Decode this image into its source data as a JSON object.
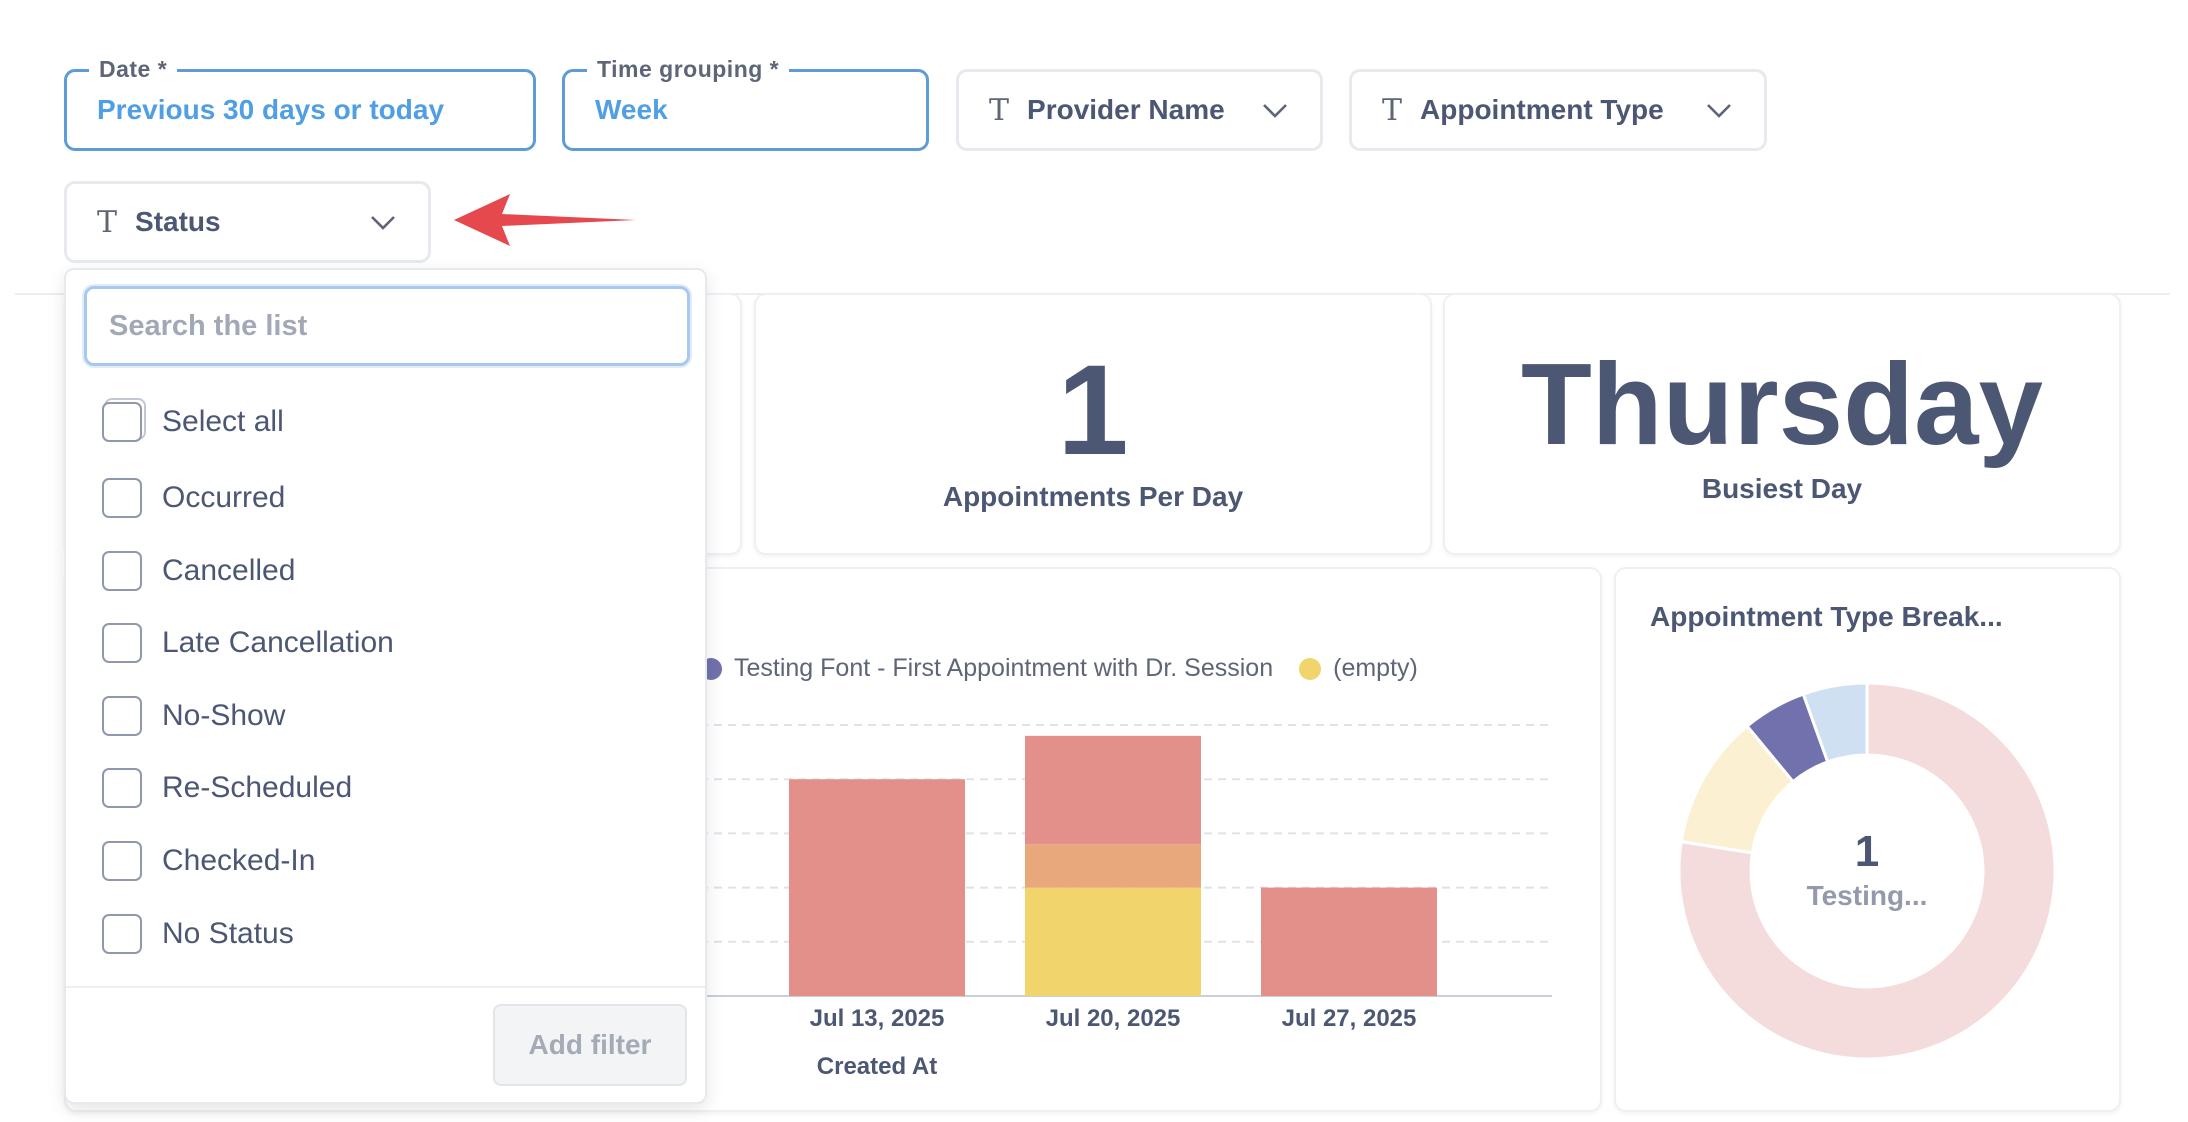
{
  "filters": {
    "date": {
      "legend": "Date *",
      "value": "Previous 30 days or today"
    },
    "time_grouping": {
      "legend": "Time grouping *",
      "value": "Week"
    },
    "provider": {
      "label": "Provider Name"
    },
    "appointment_type": {
      "label": "Appointment Type"
    },
    "status": {
      "label": "Status"
    }
  },
  "dropdown": {
    "search_placeholder": "Search the list",
    "select_all": "Select all",
    "options": [
      "Occurred",
      "Cancelled",
      "Late Cancellation",
      "No-Show",
      "Re-Scheduled",
      "Checked-In",
      "No Status"
    ],
    "add_button": "Add filter"
  },
  "scalars": {
    "per_day": {
      "value": "1",
      "label": "Appointments Per Day"
    },
    "busiest": {
      "value": "Thursday",
      "label": "Busiest Day"
    }
  },
  "bar_chart": {
    "legend": [
      {
        "name": "Testing Font - First Appointment with Dr. Session",
        "color": "#7172ad"
      },
      {
        "name": "(empty)",
        "color": "#f2d46c"
      }
    ],
    "xlabel": "Created At"
  },
  "chart_data": [
    {
      "type": "bar",
      "stacked": true,
      "categories": [
        "Jul 13, 2025",
        "Jul 20, 2025",
        "Jul 27, 2025"
      ],
      "series": [
        {
          "name": "Testing Font - First Appointment with Dr. Session",
          "color": "#7172ad",
          "values": [
            0,
            0,
            0
          ]
        },
        {
          "name": "(empty)",
          "color": "#f2d46c",
          "values": [
            0,
            2,
            0
          ]
        },
        {
          "color": "#e8a87c",
          "values": [
            0,
            0.8,
            0
          ]
        },
        {
          "color": "#e3908b",
          "values": [
            4,
            2,
            2
          ]
        }
      ],
      "xlabel": "Created At",
      "ylim": [
        0,
        5
      ],
      "grid": true,
      "legend_position": "top"
    },
    {
      "type": "pie",
      "donut": true,
      "title": "Appointment Type Break...",
      "center_value": "1",
      "center_label": "Testing...",
      "slices": [
        {
          "value": 0.775,
          "color": "#f5dcdc"
        },
        {
          "value": 0.115,
          "color": "#fbf0d1"
        },
        {
          "value": 0.055,
          "color": "#7172ad"
        },
        {
          "value": 0.055,
          "color": "#cfe0f3"
        }
      ]
    }
  ]
}
